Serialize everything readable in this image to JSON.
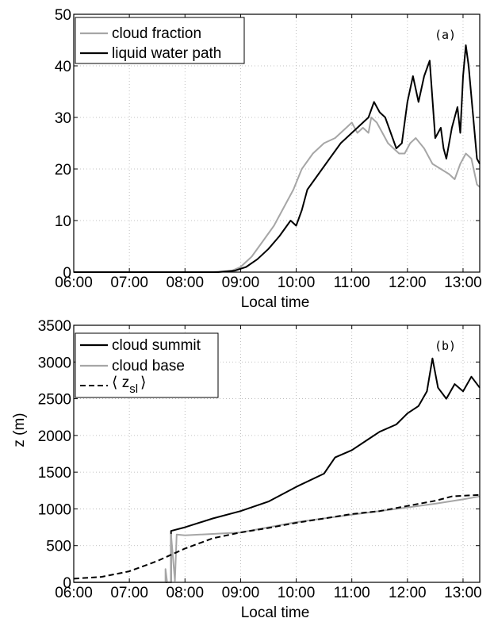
{
  "chart_data": [
    {
      "type": "line",
      "panel_tag": "(a)",
      "xlabel": "Local time",
      "ylabel": "",
      "xlim": [
        6.0,
        13.3
      ],
      "ylim": [
        0,
        50
      ],
      "x_ticks": [
        "06:00",
        "07:00",
        "08:00",
        "09:00",
        "10:00",
        "11:00",
        "12:00",
        "13:00"
      ],
      "y_ticks": [
        "0",
        "10",
        "20",
        "30",
        "40",
        "50"
      ],
      "grid": true,
      "legend_position": "top-left",
      "series": [
        {
          "name": "cloud fraction",
          "color": "#a6a6a6",
          "points": [
            [
              6.0,
              0
            ],
            [
              8.5,
              0
            ],
            [
              8.85,
              0.3
            ],
            [
              9.0,
              1
            ],
            [
              9.2,
              3
            ],
            [
              9.4,
              6
            ],
            [
              9.6,
              9
            ],
            [
              9.8,
              13
            ],
            [
              9.95,
              16
            ],
            [
              10.1,
              20
            ],
            [
              10.3,
              23
            ],
            [
              10.5,
              25
            ],
            [
              10.7,
              26
            ],
            [
              10.9,
              28
            ],
            [
              11.0,
              29
            ],
            [
              11.1,
              27
            ],
            [
              11.2,
              28
            ],
            [
              11.3,
              27
            ],
            [
              11.35,
              30
            ],
            [
              11.45,
              29
            ],
            [
              11.55,
              27
            ],
            [
              11.65,
              25
            ],
            [
              11.75,
              24
            ],
            [
              11.85,
              23
            ],
            [
              11.95,
              23
            ],
            [
              12.05,
              25
            ],
            [
              12.15,
              26
            ],
            [
              12.3,
              24
            ],
            [
              12.45,
              21
            ],
            [
              12.6,
              20
            ],
            [
              12.75,
              19
            ],
            [
              12.85,
              18
            ],
            [
              12.95,
              21
            ],
            [
              13.05,
              23
            ],
            [
              13.15,
              22
            ],
            [
              13.25,
              17
            ],
            [
              13.3,
              16.5
            ]
          ]
        },
        {
          "name": "liquid water path",
          "color": "#000000",
          "points": [
            [
              6.0,
              0
            ],
            [
              8.6,
              0
            ],
            [
              8.9,
              0.3
            ],
            [
              9.1,
              1
            ],
            [
              9.3,
              2.5
            ],
            [
              9.5,
              4.5
            ],
            [
              9.7,
              7
            ],
            [
              9.9,
              10
            ],
            [
              10.0,
              9
            ],
            [
              10.1,
              12
            ],
            [
              10.2,
              16
            ],
            [
              10.4,
              19
            ],
            [
              10.6,
              22
            ],
            [
              10.8,
              25
            ],
            [
              11.0,
              27
            ],
            [
              11.2,
              29
            ],
            [
              11.3,
              30
            ],
            [
              11.4,
              33
            ],
            [
              11.5,
              31
            ],
            [
              11.6,
              30
            ],
            [
              11.7,
              27
            ],
            [
              11.8,
              24
            ],
            [
              11.9,
              25
            ],
            [
              12.0,
              33
            ],
            [
              12.1,
              38
            ],
            [
              12.2,
              33
            ],
            [
              12.3,
              38
            ],
            [
              12.4,
              41
            ],
            [
              12.5,
              26
            ],
            [
              12.6,
              28
            ],
            [
              12.65,
              24
            ],
            [
              12.7,
              22
            ],
            [
              12.8,
              28
            ],
            [
              12.9,
              32
            ],
            [
              12.95,
              27
            ],
            [
              13.0,
              38
            ],
            [
              13.05,
              44
            ],
            [
              13.1,
              40
            ],
            [
              13.2,
              28
            ],
            [
              13.25,
              22
            ],
            [
              13.3,
              21
            ]
          ]
        }
      ]
    },
    {
      "type": "line",
      "panel_tag": "(b)",
      "xlabel": "Local time",
      "ylabel": "z (m)",
      "xlim": [
        6.0,
        13.3
      ],
      "ylim": [
        0,
        3500
      ],
      "x_ticks": [
        "06:00",
        "07:00",
        "08:00",
        "09:00",
        "10:00",
        "11:00",
        "12:00",
        "13:00"
      ],
      "y_ticks": [
        "0",
        "500",
        "1000",
        "1500",
        "2000",
        "2500",
        "3000",
        "3500"
      ],
      "grid": true,
      "legend_position": "top-left",
      "series": [
        {
          "name": "cloud summit",
          "color": "#000000",
          "points": [
            [
              6.0,
              0
            ],
            [
              7.75,
              0
            ],
            [
              7.75,
              700
            ],
            [
              8.0,
              750
            ],
            [
              8.5,
              870
            ],
            [
              9.0,
              970
            ],
            [
              9.5,
              1100
            ],
            [
              10.0,
              1300
            ],
            [
              10.5,
              1480
            ],
            [
              10.7,
              1700
            ],
            [
              11.0,
              1800
            ],
            [
              11.3,
              1950
            ],
            [
              11.5,
              2050
            ],
            [
              11.8,
              2150
            ],
            [
              12.0,
              2300
            ],
            [
              12.2,
              2400
            ],
            [
              12.35,
              2600
            ],
            [
              12.45,
              3050
            ],
            [
              12.55,
              2650
            ],
            [
              12.7,
              2500
            ],
            [
              12.85,
              2700
            ],
            [
              13.0,
              2600
            ],
            [
              13.15,
              2800
            ],
            [
              13.3,
              2650
            ]
          ]
        },
        {
          "name": "cloud base",
          "color": "#a6a6a6",
          "points": [
            [
              6.0,
              0
            ],
            [
              7.65,
              0
            ],
            [
              7.65,
              180
            ],
            [
              7.68,
              0
            ],
            [
              7.75,
              0
            ],
            [
              7.75,
              650
            ],
            [
              7.82,
              20
            ],
            [
              7.85,
              650
            ],
            [
              8.0,
              640
            ],
            [
              9.0,
              680
            ],
            [
              10.0,
              820
            ],
            [
              11.0,
              920
            ],
            [
              12.0,
              1020
            ],
            [
              12.5,
              1070
            ],
            [
              13.0,
              1130
            ],
            [
              13.3,
              1170
            ]
          ]
        },
        {
          "name": "⟨ z_sl ⟩",
          "color": "#000000",
          "dashed": true,
          "points": [
            [
              6.0,
              50
            ],
            [
              6.5,
              75
            ],
            [
              7.0,
              150
            ],
            [
              7.5,
              290
            ],
            [
              8.0,
              460
            ],
            [
              8.5,
              600
            ],
            [
              9.0,
              680
            ],
            [
              9.5,
              740
            ],
            [
              10.0,
              810
            ],
            [
              10.5,
              870
            ],
            [
              11.0,
              930
            ],
            [
              11.5,
              970
            ],
            [
              12.0,
              1040
            ],
            [
              12.5,
              1110
            ],
            [
              12.8,
              1170
            ],
            [
              13.0,
              1180
            ],
            [
              13.3,
              1190
            ]
          ]
        }
      ]
    }
  ],
  "legend": {
    "a": [
      "cloud fraction",
      "liquid water path"
    ],
    "b": [
      "cloud summit",
      "cloud base",
      "⟨ z",
      "sl",
      "⟩"
    ]
  }
}
